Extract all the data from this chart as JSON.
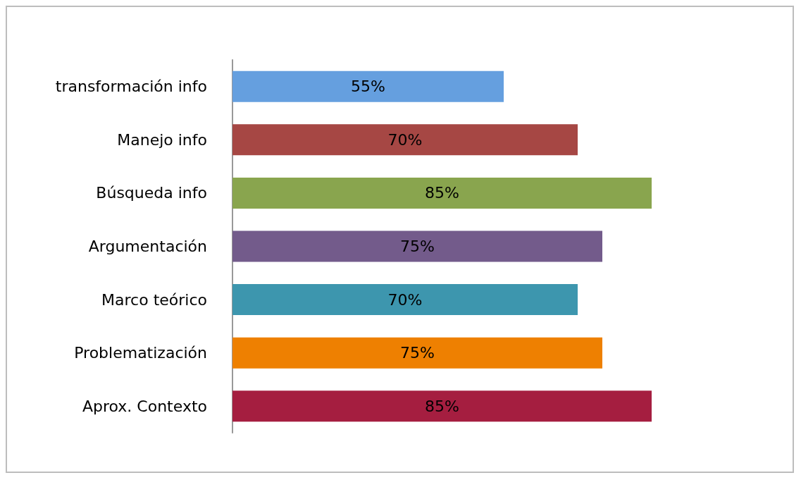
{
  "chart_data": {
    "type": "bar",
    "orientation": "horizontal",
    "categories": [
      "transformación info",
      "Manejo info",
      "Búsqueda info",
      "Argumentación",
      "Marco teórico",
      "Problematización",
      "Aprox. Contexto"
    ],
    "values": [
      55,
      70,
      85,
      75,
      70,
      75,
      85
    ],
    "colors": [
      "#659fdf",
      "#a64744",
      "#89a54e",
      "#735b8b",
      "#3d96ae",
      "#ee8001",
      "#a51e40"
    ],
    "value_labels": [
      "55%",
      "70%",
      "85%",
      "75%",
      "70%",
      "75%",
      "85%"
    ]
  }
}
